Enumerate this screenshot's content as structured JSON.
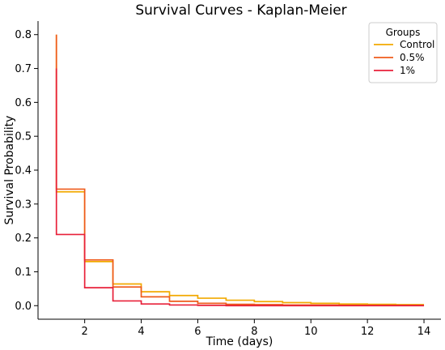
{
  "chart_data": {
    "type": "line",
    "step": "post",
    "title": "Survival Curves - Kaplan-Meier",
    "xlabel": "Time (days)",
    "ylabel": "Survival Probability",
    "xlim": [
      0.35,
      14.6
    ],
    "ylim": [
      -0.04,
      0.84
    ],
    "xticks": [
      2,
      4,
      6,
      8,
      10,
      12,
      14
    ],
    "yticks": [
      0.0,
      0.1,
      0.2,
      0.3,
      0.4,
      0.5,
      0.6,
      0.7,
      0.8
    ],
    "ytick_labels": [
      "0.0",
      "0.1",
      "0.2",
      "0.3",
      "0.4",
      "0.5",
      "0.6",
      "0.7",
      "0.8"
    ],
    "grid": false,
    "legend": {
      "title": "Groups",
      "position": "top-right"
    },
    "series": [
      {
        "name": "Control",
        "color": "#f2a900",
        "x": [
          1,
          1,
          2,
          3,
          4,
          5,
          6,
          7,
          8,
          9,
          10,
          11,
          12,
          13,
          14
        ],
        "y": [
          0.8,
          0.336,
          0.13,
          0.064,
          0.041,
          0.03,
          0.022,
          0.016,
          0.012,
          0.009,
          0.007,
          0.005,
          0.004,
          0.003,
          0.003
        ]
      },
      {
        "name": "0.5%",
        "color": "#ef5b1b",
        "x": [
          1,
          1,
          2,
          3,
          4,
          5,
          6,
          7,
          8,
          9,
          10,
          11,
          12,
          13,
          14
        ],
        "y": [
          0.8,
          0.344,
          0.135,
          0.055,
          0.026,
          0.013,
          0.007,
          0.004,
          0.003,
          0.002,
          0.002,
          0.001,
          0.001,
          0.001,
          0.001
        ]
      },
      {
        "name": "1%",
        "color": "#e8213a",
        "x": [
          1,
          1,
          2,
          3,
          4,
          5,
          6,
          7,
          8,
          9,
          10,
          11,
          12,
          13,
          14
        ],
        "y": [
          0.7,
          0.21,
          0.053,
          0.014,
          0.005,
          0.002,
          0.001,
          0.0,
          0.0,
          0.0,
          0.0,
          0.0,
          0.0,
          0.0,
          0.0
        ]
      }
    ]
  }
}
